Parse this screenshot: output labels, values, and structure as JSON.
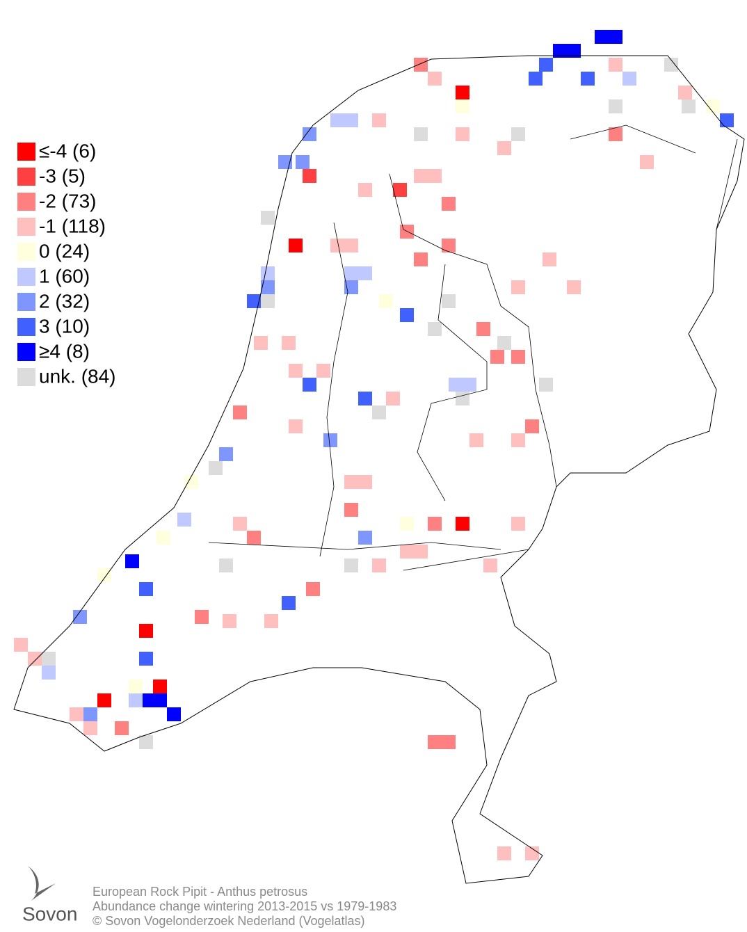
{
  "legend": [
    {
      "label": "≤-4 (6)",
      "color": "#ff0000"
    },
    {
      "label": "-3 (5)",
      "color": "#ff4040"
    },
    {
      "label": "-2 (73)",
      "color": "#ff8080"
    },
    {
      "label": "-1 (118)",
      "color": "#ffbfbf"
    },
    {
      "label": " 0 (24)",
      "color": "#ffffdd"
    },
    {
      "label": " 1 (60)",
      "color": "#bfc8ff"
    },
    {
      "label": " 2 (32)",
      "color": "#8096ff"
    },
    {
      "label": " 3 (10)",
      "color": "#4060ff"
    },
    {
      "label": "≥4 (8)",
      "color": "#0000ff"
    },
    {
      "label": "unk. (84)",
      "color": "#dcdcdc"
    }
  ],
  "logo": "Sovon",
  "footer": {
    "line1": "European Rock Pipit - Anthus petrosus",
    "line2": "Abundance change wintering  2013-2015 vs 1979-1983",
    "line3": "© Sovon Vogelonderzoek Nederland (Vogelatlas)"
  }
}
